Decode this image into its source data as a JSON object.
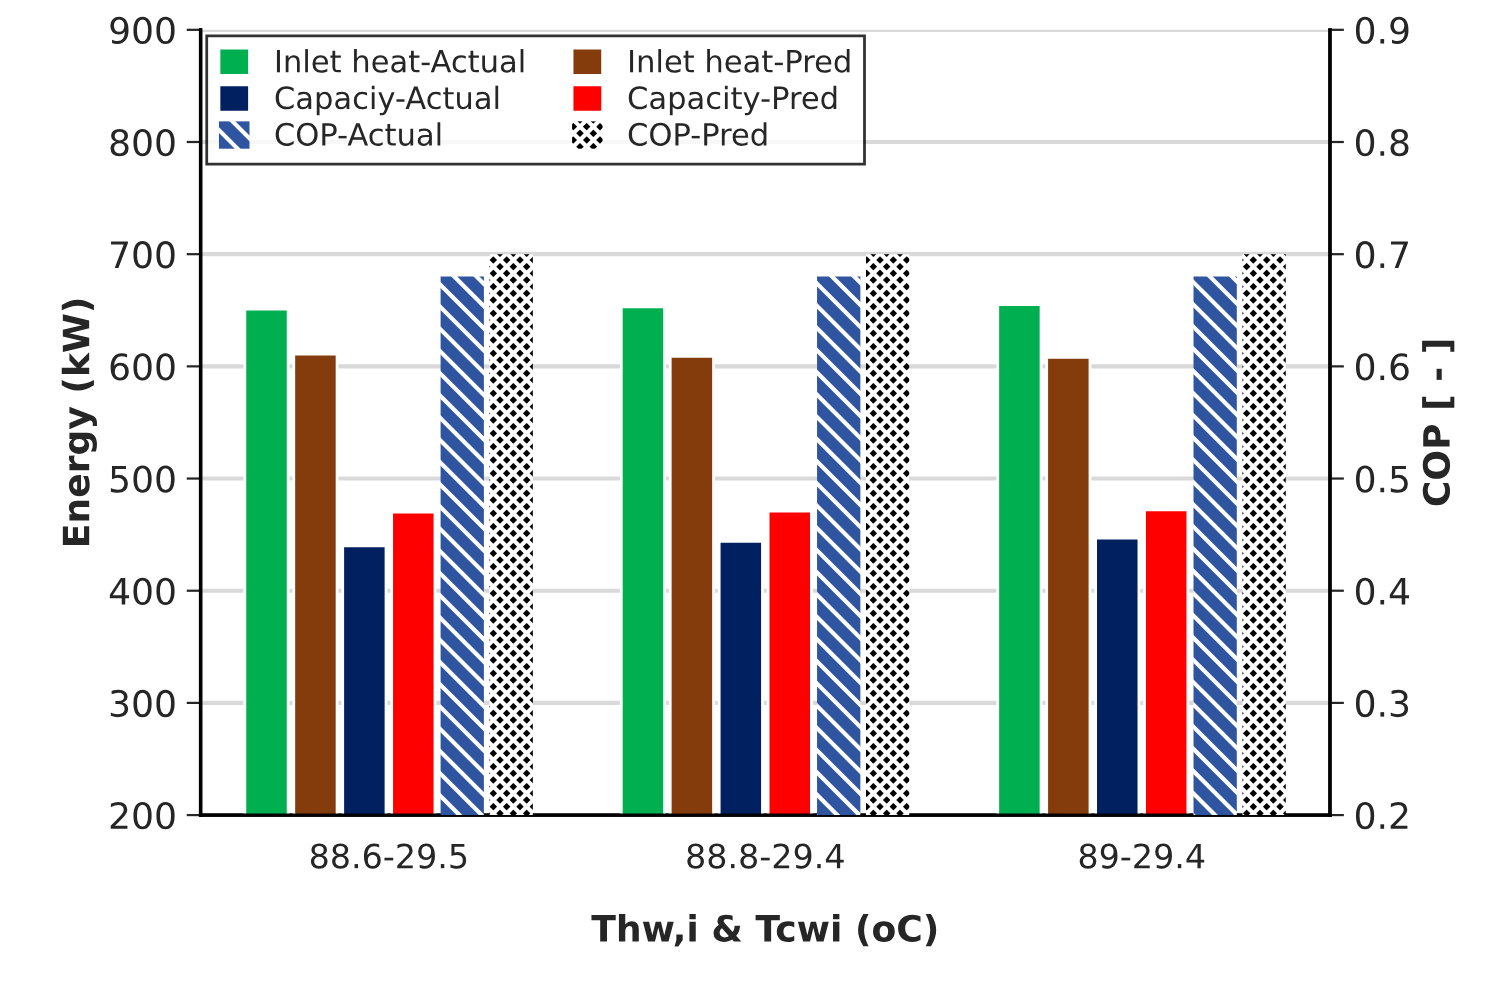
{
  "chart_data": {
    "type": "bar",
    "xlabel": "Thw,i & Tcwi (oC)",
    "ylabel": "Energy (kW)",
    "y2label": "COP [ - ]",
    "categories": [
      "88.6-29.5",
      "88.8-29.4",
      "89-29.4"
    ],
    "series": [
      {
        "name": "Inlet heat-Actual",
        "color": "#00b050",
        "values": [
          651,
          653,
          655
        ]
      },
      {
        "name": "Inlet heat-Pred",
        "color": "#843c0c",
        "values": [
          611,
          609,
          608
        ]
      },
      {
        "name": "Capaciy-Actual",
        "color": "#002060",
        "values": [
          440,
          444,
          447
        ]
      },
      {
        "name": "Capacity-Pred",
        "color": "#ff0000",
        "values": [
          470,
          471,
          472
        ]
      },
      {
        "name": "COP-Actual",
        "color": "#2f55a0",
        "values": [
          0.68,
          0.68,
          0.68
        ],
        "axis": "y2"
      },
      {
        "name": "COP-Pred",
        "color": "#000000",
        "values": [
          0.7,
          0.7,
          0.7
        ],
        "axis": "y2"
      }
    ],
    "ylim": [
      200,
      900
    ],
    "yticks": [
      200,
      300,
      400,
      500,
      600,
      700,
      800,
      900
    ],
    "y2lim": [
      0.2,
      0.9
    ],
    "y2ticks": [
      0.2,
      0.3,
      0.4,
      0.5,
      0.6,
      0.7,
      0.8,
      0.9
    ],
    "grid": "y",
    "legend": "top left"
  }
}
